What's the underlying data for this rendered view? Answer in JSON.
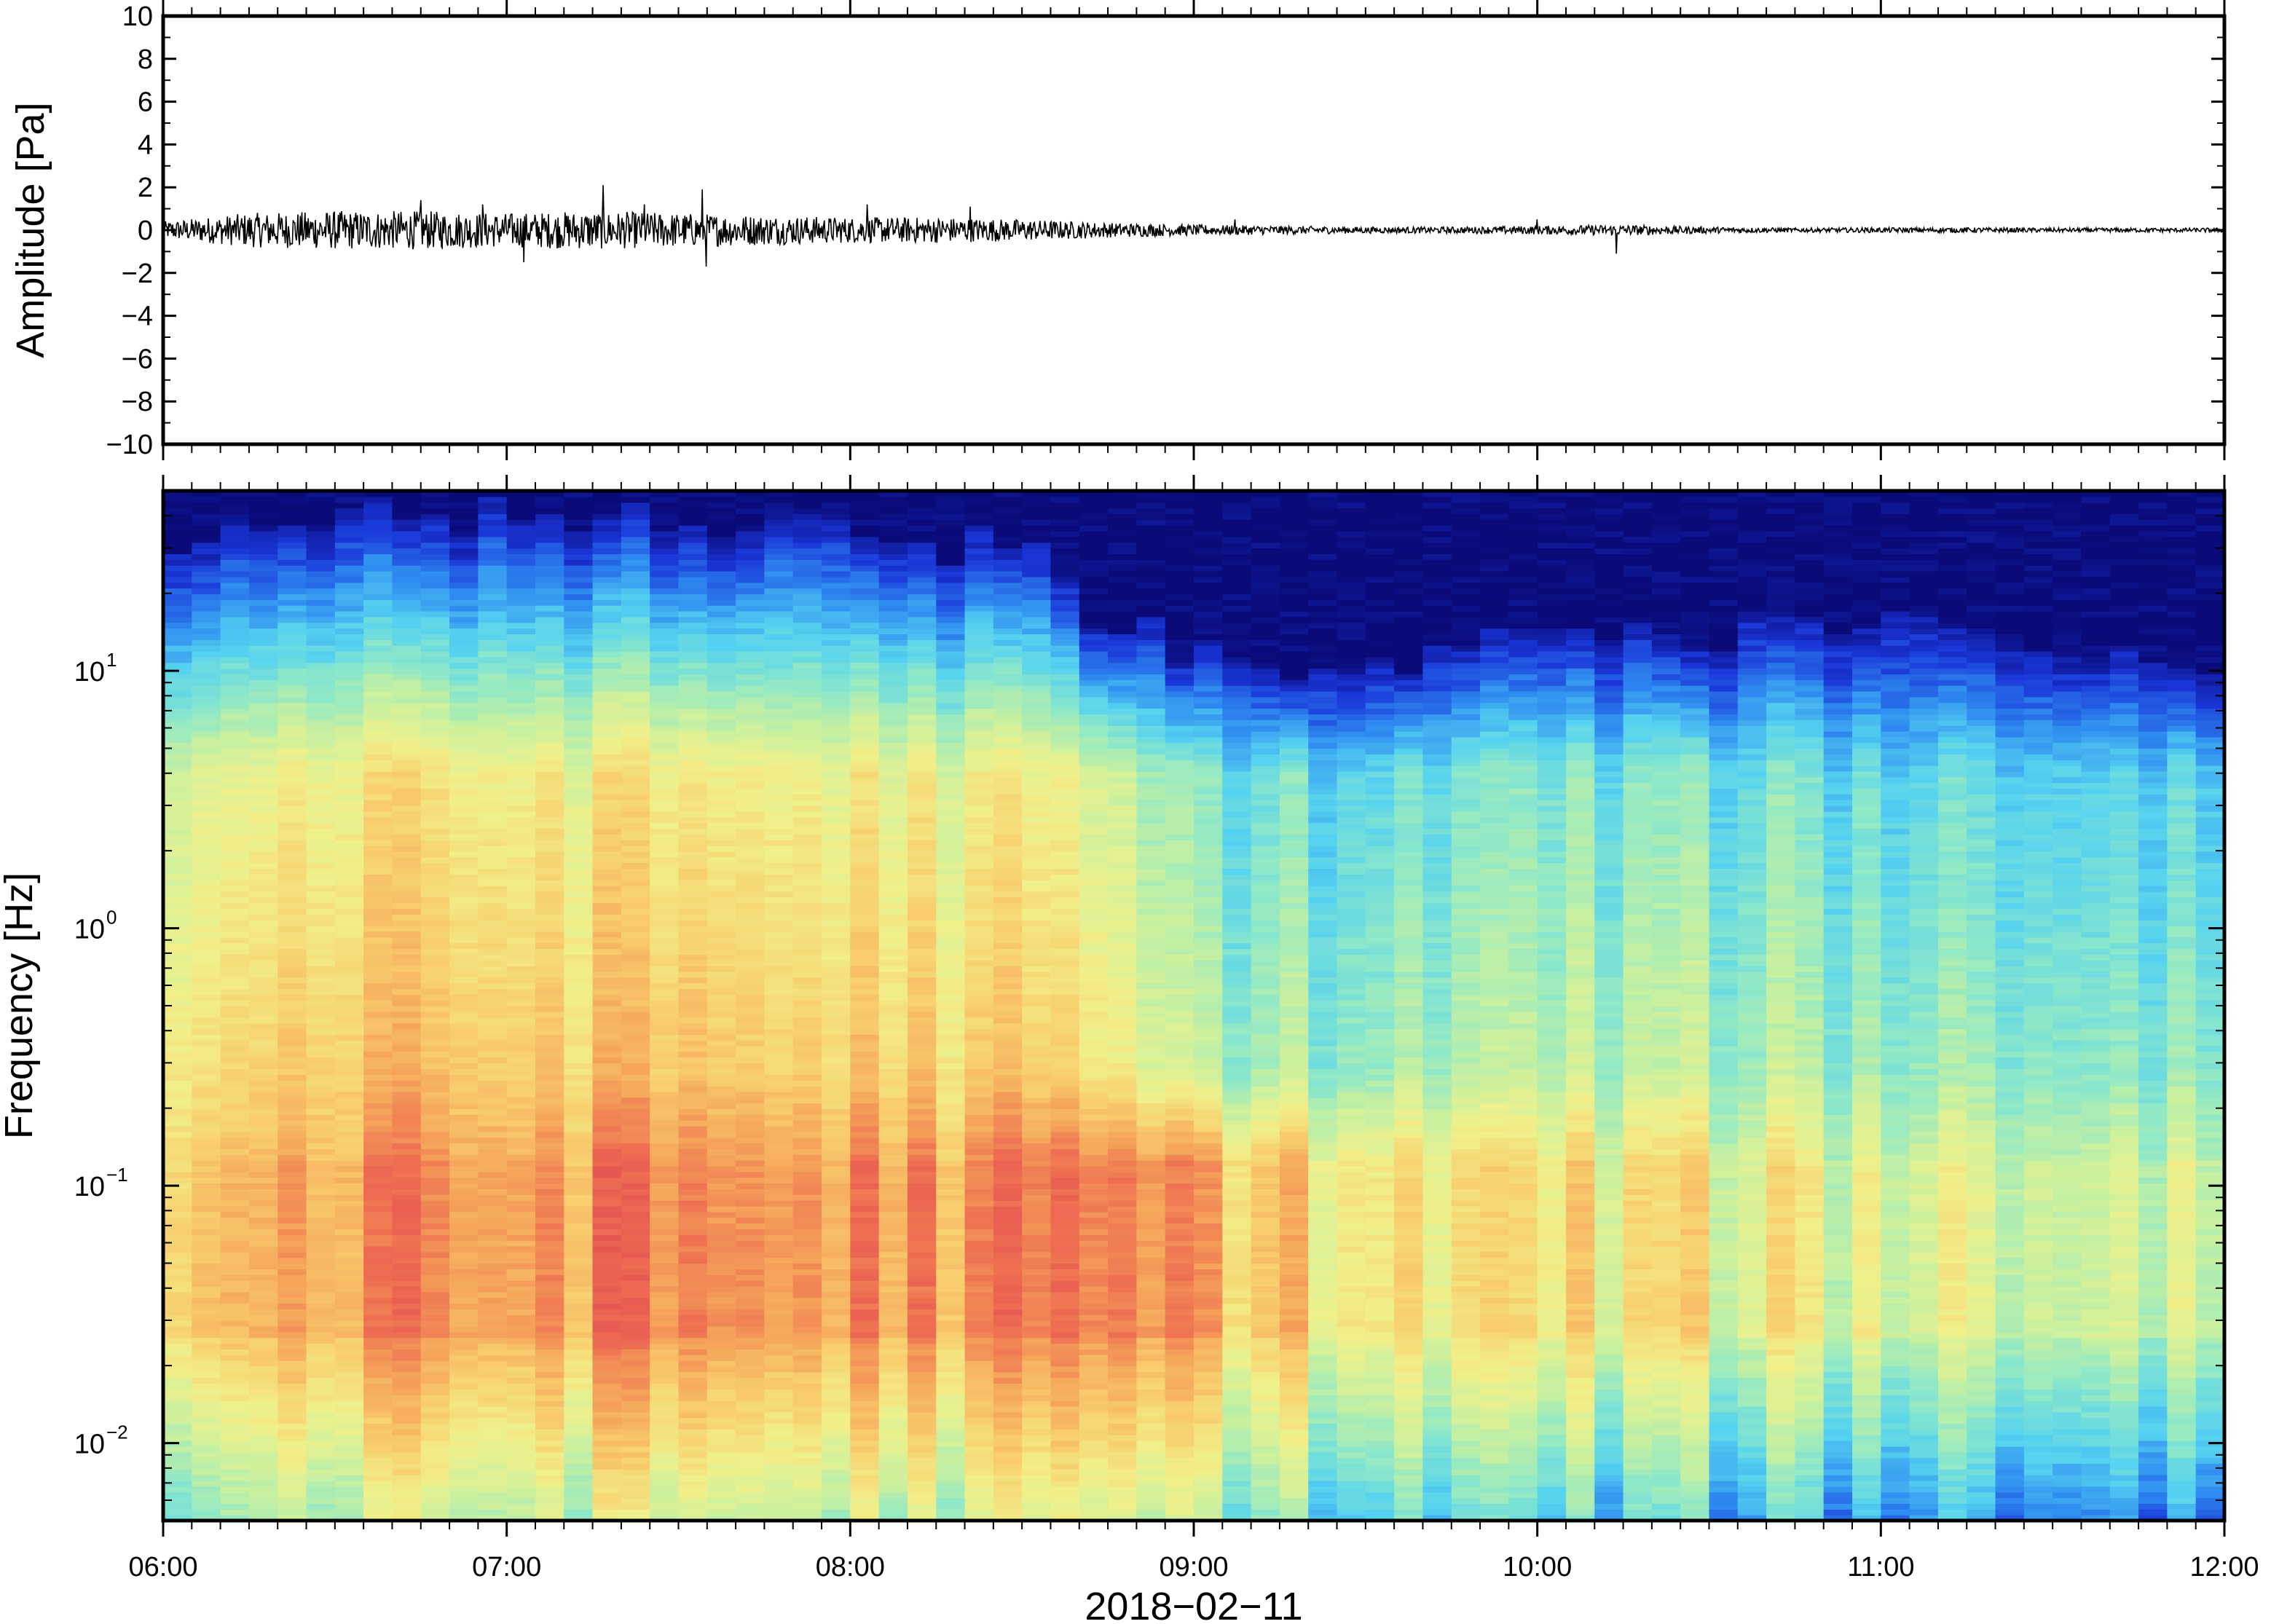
{
  "chart_data": [
    {
      "type": "line",
      "panel": "waveform",
      "ylabel": "Amplitude [Pa]",
      "xlabel": "",
      "ylim": [
        -10,
        10
      ],
      "yticks": [
        "10",
        "8",
        "6",
        "4",
        "2",
        "0",
        "−2",
        "−4",
        "−6",
        "−8",
        "−10"
      ],
      "ytick_values": [
        10,
        8,
        6,
        4,
        2,
        0,
        -2,
        -4,
        -6,
        -8,
        -10
      ],
      "xlim_hours": [
        6,
        12
      ],
      "grid": false,
      "line_color": "#000000",
      "series": [
        {
          "envelope_time_hours": [
            6.0,
            6.25,
            6.5,
            6.75,
            7.0,
            7.25,
            7.5,
            7.75,
            8.0,
            8.25,
            8.5,
            8.75,
            9.0,
            9.25,
            9.5,
            9.75,
            10.0,
            10.25,
            10.5,
            10.75,
            11.0,
            11.25,
            11.5,
            11.75,
            12.0
          ],
          "envelope_amplitude_pa": [
            0.4,
            0.8,
            0.9,
            0.9,
            0.8,
            0.9,
            0.8,
            0.7,
            0.6,
            0.6,
            0.5,
            0.35,
            0.25,
            0.2,
            0.15,
            0.15,
            0.2,
            0.25,
            0.15,
            0.1,
            0.12,
            0.12,
            0.1,
            0.1,
            0.1
          ],
          "spikes": [
            {
              "t": 6.75,
              "v": 1.4
            },
            {
              "t": 6.93,
              "v": 1.2
            },
            {
              "t": 7.05,
              "v": -1.5
            },
            {
              "t": 7.28,
              "v": 2.1
            },
            {
              "t": 7.4,
              "v": 1.2
            },
            {
              "t": 7.57,
              "v": 1.9
            },
            {
              "t": 7.58,
              "v": -1.7
            },
            {
              "t": 8.05,
              "v": 1.2
            },
            {
              "t": 8.35,
              "v": 1.1
            },
            {
              "t": 9.12,
              "v": 0.5
            },
            {
              "t": 10.23,
              "v": -1.1
            },
            {
              "t": 10.0,
              "v": 0.5
            }
          ]
        }
      ]
    },
    {
      "type": "heatmap",
      "panel": "spectrogram",
      "ylabel": "Frequency [Hz]",
      "xlabel": "2018−02−11",
      "y_scale": "log",
      "ylim": [
        0.005,
        50
      ],
      "yticks": [
        {
          "base": "10",
          "exp": "1",
          "value": 10
        },
        {
          "base": "10",
          "exp": "0",
          "value": 1
        },
        {
          "base": "10",
          "exp": "−1",
          "value": 0.1
        },
        {
          "base": "10",
          "exp": "−2",
          "value": 0.01
        }
      ],
      "xlim_hours": [
        6,
        12
      ],
      "xticks": [
        "06:00",
        "07:00",
        "08:00",
        "09:00",
        "10:00",
        "11:00",
        "12:00"
      ],
      "xtick_hours": [
        6,
        7,
        8,
        9,
        10,
        11,
        12
      ],
      "colormap": [
        "#0a0a78",
        "#1a36d8",
        "#2f8cf0",
        "#55d2f0",
        "#8ee8c8",
        "#c8f0a0",
        "#f0f08a",
        "#f8d070",
        "#f5a55a",
        "#ee6e52",
        "#e04850"
      ],
      "color_level_range": [
        0,
        1
      ],
      "intensity_model": {
        "description_free": true,
        "time_knots_hours": [
          6.0,
          6.5,
          7.0,
          7.5,
          8.0,
          8.5,
          8.75,
          9.0,
          9.5,
          10.0,
          10.5,
          11.0,
          11.5,
          12.0
        ],
        "mid_band_level": [
          0.58,
          0.66,
          0.66,
          0.66,
          0.64,
          0.62,
          0.55,
          0.42,
          0.36,
          0.42,
          0.4,
          0.38,
          0.36,
          0.34
        ],
        "low_band_level": [
          0.7,
          0.78,
          0.8,
          0.82,
          0.8,
          0.8,
          0.82,
          0.78,
          0.6,
          0.62,
          0.58,
          0.55,
          0.52,
          0.5
        ],
        "top_dark_freq_hz": [
          30,
          40,
          40,
          40,
          35,
          30,
          15,
          12,
          10,
          14,
          15,
          14,
          13,
          10
        ]
      }
    }
  ]
}
